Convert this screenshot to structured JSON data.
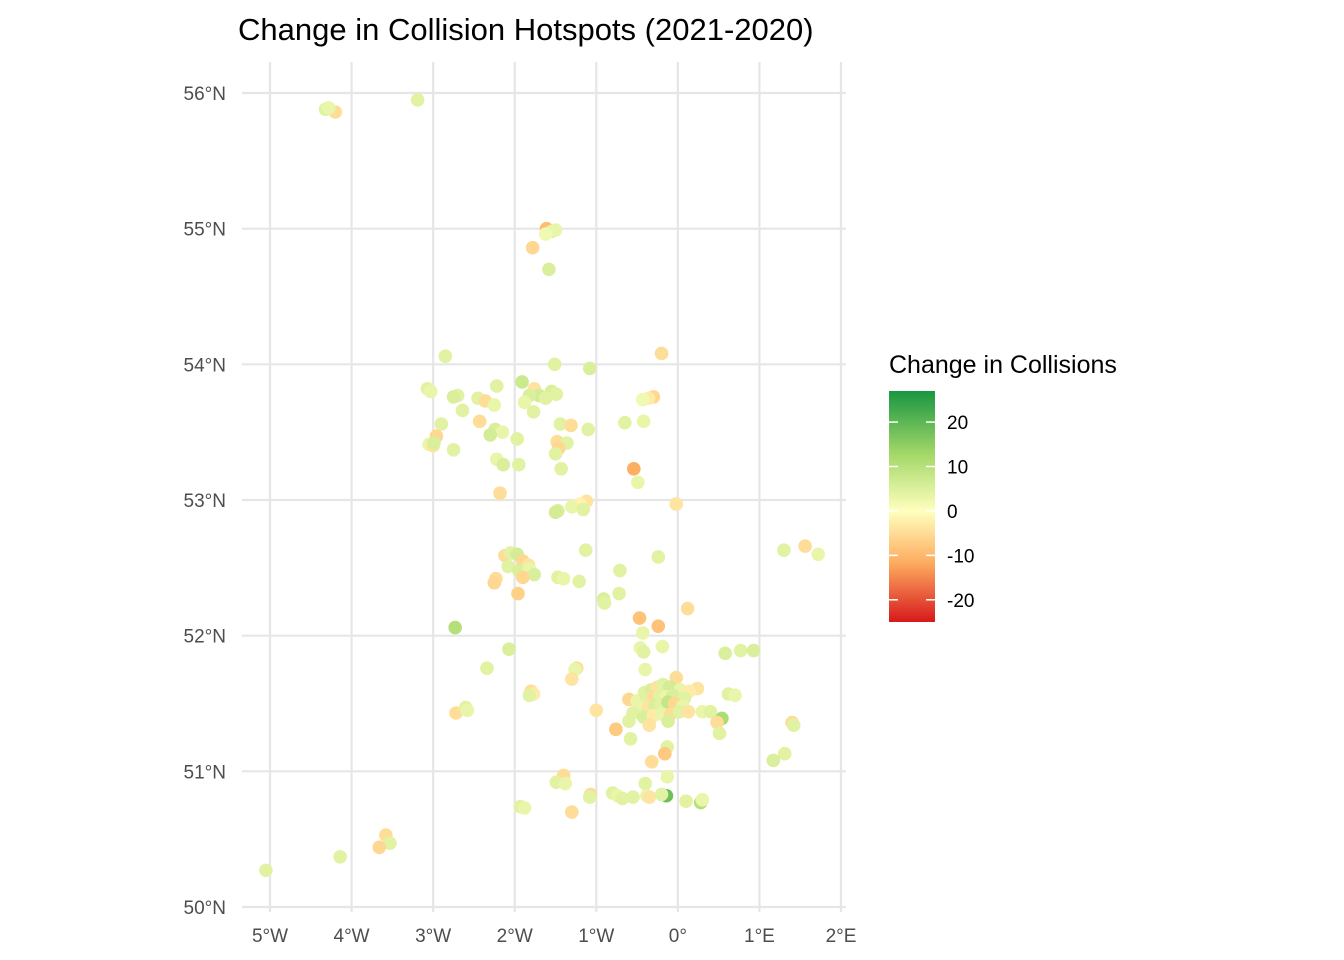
{
  "chart_data": {
    "type": "scatter",
    "title": "Change in Collision Hotspots (2021-2020)",
    "xlabel": "",
    "ylabel": "",
    "xlim": [
      -5.1,
      2.0
    ],
    "ylim": [
      50.0,
      56.2
    ],
    "x_ticks": [
      {
        "value": -5,
        "label": "5°W"
      },
      {
        "value": -4,
        "label": "4°W"
      },
      {
        "value": -3,
        "label": "3°W"
      },
      {
        "value": -2,
        "label": "2°W"
      },
      {
        "value": -1,
        "label": "1°W"
      },
      {
        "value": 0,
        "label": "0°"
      },
      {
        "value": 1,
        "label": "1°E"
      },
      {
        "value": 2,
        "label": "2°E"
      }
    ],
    "y_ticks": [
      {
        "value": 50,
        "label": "50°N"
      },
      {
        "value": 51,
        "label": "51°N"
      },
      {
        "value": 52,
        "label": "52°N"
      },
      {
        "value": 53,
        "label": "53°N"
      },
      {
        "value": 54,
        "label": "54°N"
      },
      {
        "value": 55,
        "label": "55°N"
      },
      {
        "value": 56,
        "label": "56°N"
      }
    ],
    "grid": true,
    "legend": {
      "title": "Change in Collisions",
      "position": "right",
      "range": [
        -25,
        27
      ],
      "breaks": [
        {
          "value": 20,
          "label": "20"
        },
        {
          "value": 10,
          "label": "10"
        },
        {
          "value": 0,
          "label": "0"
        },
        {
          "value": -10,
          "label": "-10"
        },
        {
          "value": -20,
          "label": "-20"
        }
      ],
      "colors": [
        "#d7191c",
        "#fdae61",
        "#ffffbf",
        "#a6d96a",
        "#1a9641"
      ]
    },
    "points": [
      {
        "lon": -4.32,
        "lat": 55.88,
        "change": 4
      },
      {
        "lon": -4.2,
        "lat": 55.86,
        "change": -5
      },
      {
        "lon": -4.28,
        "lat": 55.89,
        "change": 3
      },
      {
        "lon": -3.19,
        "lat": 55.95,
        "change": 4
      },
      {
        "lon": -1.61,
        "lat": 55.0,
        "change": -10
      },
      {
        "lon": -1.55,
        "lat": 54.98,
        "change": 4
      },
      {
        "lon": -1.5,
        "lat": 54.99,
        "change": 3
      },
      {
        "lon": -1.62,
        "lat": 54.96,
        "change": 2
      },
      {
        "lon": -1.78,
        "lat": 54.86,
        "change": -6
      },
      {
        "lon": -1.58,
        "lat": 54.7,
        "change": 5
      },
      {
        "lon": -0.2,
        "lat": 54.08,
        "change": -5
      },
      {
        "lon": -2.85,
        "lat": 54.06,
        "change": 4
      },
      {
        "lon": -1.51,
        "lat": 54.0,
        "change": 4
      },
      {
        "lon": -1.08,
        "lat": 53.97,
        "change": 5
      },
      {
        "lon": -1.91,
        "lat": 53.87,
        "change": 7
      },
      {
        "lon": -2.22,
        "lat": 53.84,
        "change": 4
      },
      {
        "lon": -1.76,
        "lat": 53.82,
        "change": -4
      },
      {
        "lon": -3.07,
        "lat": 53.82,
        "change": 4
      },
      {
        "lon": -3.03,
        "lat": 53.8,
        "change": 3
      },
      {
        "lon": -1.55,
        "lat": 53.8,
        "change": 5
      },
      {
        "lon": -1.49,
        "lat": 53.78,
        "change": 4
      },
      {
        "lon": -1.7,
        "lat": 53.77,
        "change": 6
      },
      {
        "lon": -1.82,
        "lat": 53.77,
        "change": 5
      },
      {
        "lon": -1.62,
        "lat": 53.75,
        "change": 4
      },
      {
        "lon": -1.88,
        "lat": 53.72,
        "change": 3
      },
      {
        "lon": -2.7,
        "lat": 53.77,
        "change": 4
      },
      {
        "lon": -2.75,
        "lat": 53.76,
        "change": 5
      },
      {
        "lon": -2.45,
        "lat": 53.75,
        "change": 4
      },
      {
        "lon": -2.36,
        "lat": 53.73,
        "change": -5
      },
      {
        "lon": -2.25,
        "lat": 53.7,
        "change": 3
      },
      {
        "lon": -2.64,
        "lat": 53.66,
        "change": 4
      },
      {
        "lon": -1.77,
        "lat": 53.65,
        "change": 4
      },
      {
        "lon": -0.3,
        "lat": 53.76,
        "change": -6
      },
      {
        "lon": -0.36,
        "lat": 53.75,
        "change": -3
      },
      {
        "lon": -0.43,
        "lat": 53.74,
        "change": 2
      },
      {
        "lon": -0.65,
        "lat": 53.57,
        "change": 4
      },
      {
        "lon": -0.42,
        "lat": 53.58,
        "change": 3
      },
      {
        "lon": -2.43,
        "lat": 53.58,
        "change": -5
      },
      {
        "lon": -2.9,
        "lat": 53.56,
        "change": 4
      },
      {
        "lon": -1.44,
        "lat": 53.56,
        "change": 4
      },
      {
        "lon": -1.31,
        "lat": 53.55,
        "change": -5
      },
      {
        "lon": -1.1,
        "lat": 53.52,
        "change": 4
      },
      {
        "lon": -2.24,
        "lat": 53.52,
        "change": 5
      },
      {
        "lon": -2.15,
        "lat": 53.5,
        "change": 3
      },
      {
        "lon": -2.3,
        "lat": 53.48,
        "change": 6
      },
      {
        "lon": -2.96,
        "lat": 53.47,
        "change": -6
      },
      {
        "lon": -1.97,
        "lat": 53.45,
        "change": 4
      },
      {
        "lon": -1.48,
        "lat": 53.43,
        "change": -5
      },
      {
        "lon": -1.36,
        "lat": 53.42,
        "change": 4
      },
      {
        "lon": -3.05,
        "lat": 53.41,
        "change": 3
      },
      {
        "lon": -3.0,
        "lat": 53.4,
        "change": -4
      },
      {
        "lon": -2.99,
        "lat": 53.42,
        "change": 5
      },
      {
        "lon": -1.46,
        "lat": 53.38,
        "change": -6
      },
      {
        "lon": -2.75,
        "lat": 53.37,
        "change": 4
      },
      {
        "lon": -1.5,
        "lat": 53.34,
        "change": 4
      },
      {
        "lon": -2.22,
        "lat": 53.3,
        "change": 3
      },
      {
        "lon": -1.95,
        "lat": 53.26,
        "change": 4
      },
      {
        "lon": -2.14,
        "lat": 53.26,
        "change": 5
      },
      {
        "lon": -1.43,
        "lat": 53.23,
        "change": 4
      },
      {
        "lon": -0.54,
        "lat": 53.23,
        "change": -12
      },
      {
        "lon": -0.49,
        "lat": 53.13,
        "change": 3
      },
      {
        "lon": -2.18,
        "lat": 53.05,
        "change": -5
      },
      {
        "lon": -1.12,
        "lat": 52.99,
        "change": -4
      },
      {
        "lon": -1.2,
        "lat": 52.97,
        "change": -2
      },
      {
        "lon": -0.02,
        "lat": 52.97,
        "change": -4
      },
      {
        "lon": -1.3,
        "lat": 52.95,
        "change": 3
      },
      {
        "lon": -1.47,
        "lat": 52.92,
        "change": 5
      },
      {
        "lon": -1.5,
        "lat": 52.91,
        "change": 6
      },
      {
        "lon": -1.16,
        "lat": 52.93,
        "change": 4
      },
      {
        "lon": -1.13,
        "lat": 52.63,
        "change": 4
      },
      {
        "lon": 1.3,
        "lat": 52.63,
        "change": 4
      },
      {
        "lon": 1.56,
        "lat": 52.66,
        "change": -5
      },
      {
        "lon": 1.72,
        "lat": 52.6,
        "change": 3
      },
      {
        "lon": -0.24,
        "lat": 52.58,
        "change": 4
      },
      {
        "lon": -2.12,
        "lat": 52.59,
        "change": -5
      },
      {
        "lon": -2.05,
        "lat": 52.61,
        "change": 4
      },
      {
        "lon": -1.97,
        "lat": 52.6,
        "change": 6
      },
      {
        "lon": -1.9,
        "lat": 52.55,
        "change": -6
      },
      {
        "lon": -1.83,
        "lat": 52.52,
        "change": -4
      },
      {
        "lon": -2.08,
        "lat": 52.51,
        "change": 4
      },
      {
        "lon": -1.95,
        "lat": 52.48,
        "change": 5
      },
      {
        "lon": -1.82,
        "lat": 52.49,
        "change": 3
      },
      {
        "lon": -1.76,
        "lat": 52.45,
        "change": 5
      },
      {
        "lon": -1.9,
        "lat": 52.43,
        "change": -6
      },
      {
        "lon": -2.23,
        "lat": 52.42,
        "change": -5
      },
      {
        "lon": -2.25,
        "lat": 52.39,
        "change": -6
      },
      {
        "lon": -0.71,
        "lat": 52.48,
        "change": 4
      },
      {
        "lon": -1.47,
        "lat": 52.43,
        "change": 4
      },
      {
        "lon": -1.4,
        "lat": 52.42,
        "change": 3
      },
      {
        "lon": -1.21,
        "lat": 52.4,
        "change": 4
      },
      {
        "lon": -0.72,
        "lat": 52.31,
        "change": 4
      },
      {
        "lon": -1.96,
        "lat": 52.31,
        "change": -7
      },
      {
        "lon": -0.91,
        "lat": 52.27,
        "change": 5
      },
      {
        "lon": -0.9,
        "lat": 52.24,
        "change": 4
      },
      {
        "lon": 0.12,
        "lat": 52.2,
        "change": -5
      },
      {
        "lon": -0.47,
        "lat": 52.13,
        "change": -9
      },
      {
        "lon": -0.24,
        "lat": 52.07,
        "change": -9
      },
      {
        "lon": -2.73,
        "lat": 52.06,
        "change": 10
      },
      {
        "lon": -0.43,
        "lat": 52.02,
        "change": 3
      },
      {
        "lon": -2.07,
        "lat": 51.9,
        "change": 5
      },
      {
        "lon": -0.19,
        "lat": 51.92,
        "change": 3
      },
      {
        "lon": -0.46,
        "lat": 51.91,
        "change": 3
      },
      {
        "lon": -0.42,
        "lat": 51.88,
        "change": 4
      },
      {
        "lon": 0.58,
        "lat": 51.87,
        "change": 5
      },
      {
        "lon": 0.77,
        "lat": 51.89,
        "change": 4
      },
      {
        "lon": 0.93,
        "lat": 51.89,
        "change": 5
      },
      {
        "lon": -1.24,
        "lat": 51.76,
        "change": -5
      },
      {
        "lon": -1.26,
        "lat": 51.75,
        "change": 3
      },
      {
        "lon": -2.34,
        "lat": 51.76,
        "change": 4
      },
      {
        "lon": -0.4,
        "lat": 51.75,
        "change": 3
      },
      {
        "lon": -1.3,
        "lat": 51.68,
        "change": -4
      },
      {
        "lon": -0.02,
        "lat": 51.69,
        "change": -5
      },
      {
        "lon": 0.62,
        "lat": 51.57,
        "change": 4
      },
      {
        "lon": 0.7,
        "lat": 51.56,
        "change": 3
      },
      {
        "lon": 0.24,
        "lat": 51.61,
        "change": -4
      },
      {
        "lon": -1.8,
        "lat": 51.59,
        "change": -5
      },
      {
        "lon": -1.77,
        "lat": 51.57,
        "change": -3
      },
      {
        "lon": -1.82,
        "lat": 51.56,
        "change": 4
      },
      {
        "lon": -0.6,
        "lat": 51.53,
        "change": -6
      },
      {
        "lon": -0.5,
        "lat": 51.52,
        "change": 3
      },
      {
        "lon": -0.41,
        "lat": 51.58,
        "change": 4
      },
      {
        "lon": -0.33,
        "lat": 51.6,
        "change": 5
      },
      {
        "lon": -0.25,
        "lat": 51.62,
        "change": -4
      },
      {
        "lon": -0.18,
        "lat": 51.64,
        "change": 4
      },
      {
        "lon": -0.1,
        "lat": 51.62,
        "change": 6
      },
      {
        "lon": 0.03,
        "lat": 51.6,
        "change": 3
      },
      {
        "lon": 0.14,
        "lat": 51.59,
        "change": -3
      },
      {
        "lon": -0.38,
        "lat": 51.52,
        "change": 4
      },
      {
        "lon": -0.3,
        "lat": 51.55,
        "change": -5
      },
      {
        "lon": -0.22,
        "lat": 51.56,
        "change": 4
      },
      {
        "lon": -0.14,
        "lat": 51.55,
        "change": 3
      },
      {
        "lon": -0.06,
        "lat": 51.56,
        "change": 5
      },
      {
        "lon": 0.08,
        "lat": 51.54,
        "change": 4
      },
      {
        "lon": -0.45,
        "lat": 51.47,
        "change": 3
      },
      {
        "lon": -0.36,
        "lat": 51.47,
        "change": -4
      },
      {
        "lon": -0.28,
        "lat": 51.48,
        "change": 5
      },
      {
        "lon": -0.2,
        "lat": 51.49,
        "change": 4
      },
      {
        "lon": -0.12,
        "lat": 51.51,
        "change": 8
      },
      {
        "lon": -0.04,
        "lat": 51.5,
        "change": -6
      },
      {
        "lon": 0.06,
        "lat": 51.48,
        "change": 3
      },
      {
        "lon": -0.55,
        "lat": 51.43,
        "change": 4
      },
      {
        "lon": -0.42,
        "lat": 51.4,
        "change": 5
      },
      {
        "lon": -0.3,
        "lat": 51.41,
        "change": -3
      },
      {
        "lon": -0.19,
        "lat": 51.42,
        "change": 3
      },
      {
        "lon": -0.09,
        "lat": 51.42,
        "change": -5
      },
      {
        "lon": 0.02,
        "lat": 51.44,
        "change": 4
      },
      {
        "lon": 0.13,
        "lat": 51.44,
        "change": -4
      },
      {
        "lon": -0.6,
        "lat": 51.37,
        "change": 4
      },
      {
        "lon": -0.35,
        "lat": 51.34,
        "change": -4
      },
      {
        "lon": -0.12,
        "lat": 51.37,
        "change": 5
      },
      {
        "lon": 0.3,
        "lat": 51.44,
        "change": 3
      },
      {
        "lon": 0.4,
        "lat": 51.44,
        "change": 4
      },
      {
        "lon": 0.54,
        "lat": 51.39,
        "change": 11
      },
      {
        "lon": 0.48,
        "lat": 51.36,
        "change": -5
      },
      {
        "lon": 0.51,
        "lat": 51.28,
        "change": 4
      },
      {
        "lon": -2.72,
        "lat": 51.43,
        "change": -5
      },
      {
        "lon": -2.6,
        "lat": 51.47,
        "change": 4
      },
      {
        "lon": -2.58,
        "lat": 51.45,
        "change": 3
      },
      {
        "lon": -1.0,
        "lat": 51.45,
        "change": -4
      },
      {
        "lon": -0.76,
        "lat": 51.31,
        "change": -8
      },
      {
        "lon": -0.58,
        "lat": 51.24,
        "change": 4
      },
      {
        "lon": 1.4,
        "lat": 51.36,
        "change": -5
      },
      {
        "lon": 1.42,
        "lat": 51.34,
        "change": 4
      },
      {
        "lon": -0.13,
        "lat": 51.18,
        "change": 4
      },
      {
        "lon": -0.16,
        "lat": 51.13,
        "change": -8
      },
      {
        "lon": 1.31,
        "lat": 51.13,
        "change": 4
      },
      {
        "lon": 1.17,
        "lat": 51.08,
        "change": 5
      },
      {
        "lon": -0.32,
        "lat": 51.07,
        "change": -5
      },
      {
        "lon": -0.13,
        "lat": 50.96,
        "change": 3
      },
      {
        "lon": -1.4,
        "lat": 50.97,
        "change": -5
      },
      {
        "lon": -1.49,
        "lat": 50.92,
        "change": 4
      },
      {
        "lon": -1.38,
        "lat": 50.91,
        "change": 3
      },
      {
        "lon": -0.4,
        "lat": 50.91,
        "change": 4
      },
      {
        "lon": -1.07,
        "lat": 50.83,
        "change": -5
      },
      {
        "lon": -1.08,
        "lat": 50.81,
        "change": 4
      },
      {
        "lon": -0.8,
        "lat": 50.84,
        "change": 4
      },
      {
        "lon": -0.74,
        "lat": 50.82,
        "change": 3
      },
      {
        "lon": -0.68,
        "lat": 50.8,
        "change": 4
      },
      {
        "lon": -0.55,
        "lat": 50.81,
        "change": 4
      },
      {
        "lon": -0.38,
        "lat": 50.82,
        "change": 3
      },
      {
        "lon": -0.35,
        "lat": 50.81,
        "change": -4
      },
      {
        "lon": -0.14,
        "lat": 50.82,
        "change": 18
      },
      {
        "lon": -0.2,
        "lat": 50.83,
        "change": 4
      },
      {
        "lon": 0.1,
        "lat": 50.78,
        "change": 4
      },
      {
        "lon": 0.28,
        "lat": 50.77,
        "change": 10
      },
      {
        "lon": 0.3,
        "lat": 50.79,
        "change": 3
      },
      {
        "lon": -1.3,
        "lat": 50.7,
        "change": -5
      },
      {
        "lon": -1.93,
        "lat": 50.74,
        "change": 4
      },
      {
        "lon": -1.88,
        "lat": 50.73,
        "change": 3
      },
      {
        "lon": -3.58,
        "lat": 50.53,
        "change": -5
      },
      {
        "lon": -3.53,
        "lat": 50.47,
        "change": 4
      },
      {
        "lon": -3.66,
        "lat": 50.44,
        "change": -6
      },
      {
        "lon": -4.14,
        "lat": 50.37,
        "change": 4
      },
      {
        "lon": -5.05,
        "lat": 50.27,
        "change": 4
      }
    ]
  }
}
